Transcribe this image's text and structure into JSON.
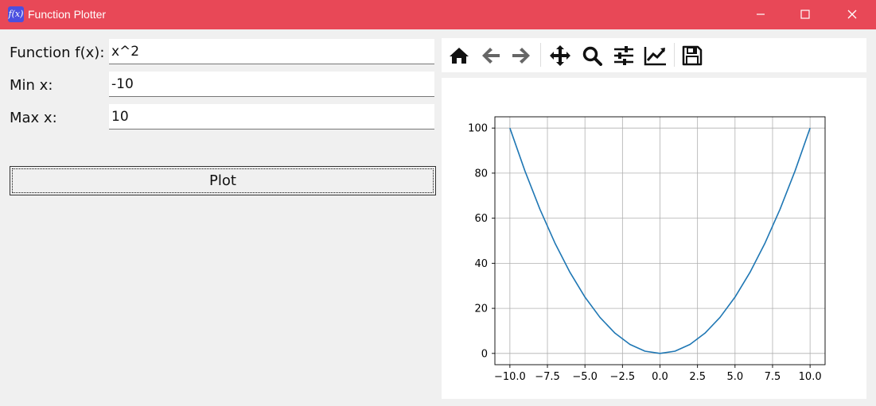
{
  "window": {
    "title": "Function Plotter",
    "icon_text": "f(x)",
    "icon": "function-icon",
    "accent_color": "#e84857",
    "controls": [
      "minimize-icon",
      "maximize-icon",
      "close-icon"
    ]
  },
  "form": {
    "function_label": "Function f(x):",
    "function_value": "x^2",
    "min_label": "Min x:",
    "min_value": "-10",
    "max_label": "Max x:",
    "max_value": "10",
    "plot_button": "Plot"
  },
  "toolbar": {
    "icons": [
      "home-icon",
      "back-icon",
      "forward-icon",
      "pan-icon",
      "zoom-icon",
      "configure-subplots-icon",
      "edit-axes-icon",
      "save-icon"
    ]
  },
  "chart_data": {
    "type": "line",
    "expression": "x^2",
    "x": [
      -10,
      -9,
      -8,
      -7,
      -6,
      -5,
      -4,
      -3,
      -2,
      -1,
      0,
      1,
      2,
      3,
      4,
      5,
      6,
      7,
      8,
      9,
      10
    ],
    "series": [
      {
        "values": [
          100,
          81,
          64,
          49,
          36,
          25,
          16,
          9,
          4,
          1,
          0,
          1,
          4,
          9,
          16,
          25,
          36,
          49,
          64,
          81,
          100
        ],
        "color": "#1f77b4"
      }
    ],
    "xticks": [
      -10.0,
      -7.5,
      -5.0,
      -2.5,
      0.0,
      2.5,
      5.0,
      7.5,
      10.0
    ],
    "xtick_labels": [
      "−10.0",
      "−7.5",
      "−5.0",
      "−2.5",
      "0.0",
      "2.5",
      "5.0",
      "7.5",
      "10.0"
    ],
    "yticks": [
      0,
      20,
      40,
      60,
      80,
      100
    ],
    "ytick_labels": [
      "0",
      "20",
      "40",
      "60",
      "80",
      "100"
    ],
    "xlim": [
      -11,
      11
    ],
    "ylim": [
      -5,
      105
    ],
    "grid": true,
    "title": "",
    "xlabel": "",
    "ylabel": ""
  }
}
